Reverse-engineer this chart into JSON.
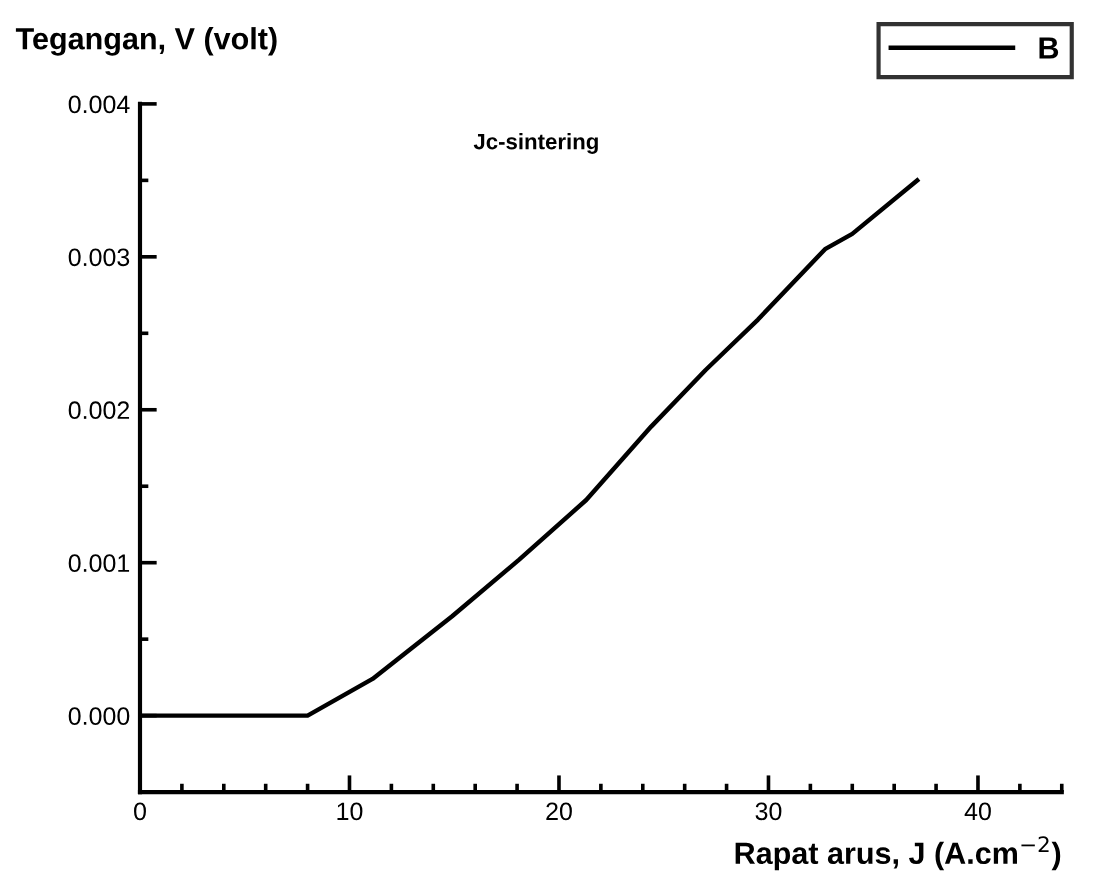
{
  "chart_data": {
    "type": "line",
    "title": "Jc-sintering",
    "xlabel": "Rapat arus, J (A.cm$^{−2}$)",
    "ylabel": "Tegangan, V (volt)",
    "xlim": [
      0,
      44
    ],
    "xticks": [
      0,
      10,
      20,
      30,
      40
    ],
    "ylim": [
      -0.0005,
      0.004
    ],
    "yticks": [
      {
        "value": 0,
        "label": "0.000"
      },
      {
        "value": 0.001,
        "label": "0.001"
      },
      {
        "value": 0.002,
        "label": "0.002"
      },
      {
        "value": 0.003,
        "label": "0.003"
      },
      {
        "value": 0.004,
        "label": "0.004"
      }
    ],
    "grid": false,
    "legend": "top right",
    "marker": "none",
    "line_style": "solid",
    "series": [
      {
        "name": "B",
        "color": "#000000",
        "x": [
          0,
          8.0,
          11.1,
          14.9,
          18.1,
          21.3,
          24.4,
          27.0,
          29.5,
          32.7,
          34.0,
          37.1
        ],
        "values": [
          0,
          0,
          0.00024,
          0.00065,
          0.00102,
          0.00141,
          0.00189,
          0.00226,
          0.00259,
          0.00305,
          0.00315,
          0.0035
        ]
      }
    ]
  }
}
